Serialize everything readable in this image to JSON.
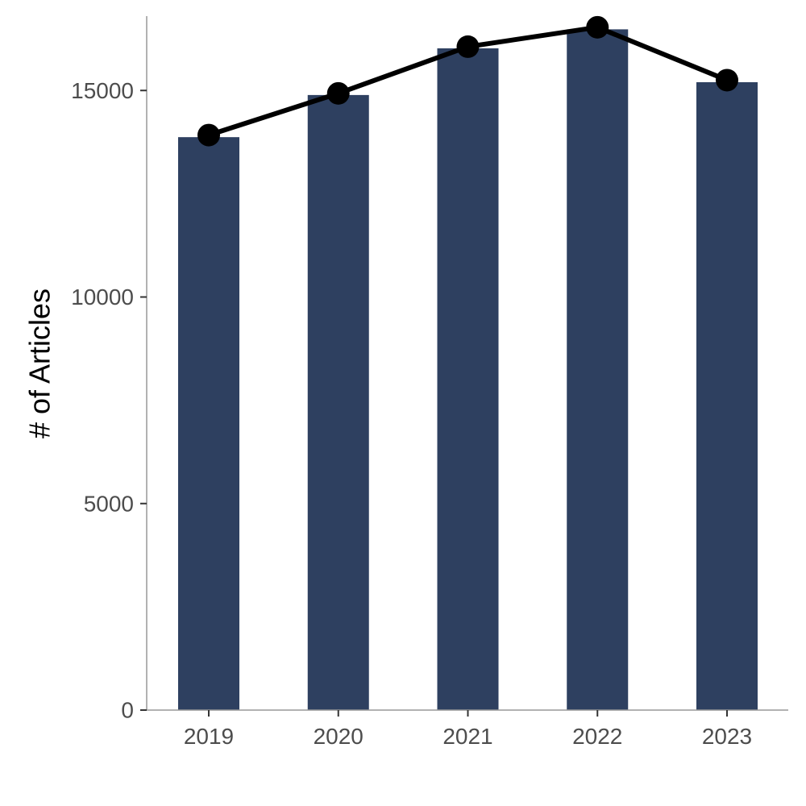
{
  "chart_data": {
    "type": "bar",
    "title": "",
    "xlabel": "",
    "ylabel": "# of Articles",
    "categories": [
      "2019",
      "2020",
      "2021",
      "2022",
      "2023"
    ],
    "series": [
      {
        "type": "bar",
        "values": [
          13870,
          14890,
          16020,
          16480,
          15200
        ],
        "color": "#2e4060"
      },
      {
        "type": "line",
        "values": [
          13920,
          14930,
          16060,
          16530,
          15250
        ],
        "color": "#000000"
      }
    ],
    "ylim": [
      0,
      16800
    ],
    "yticks": [
      0,
      5000,
      10000,
      15000
    ],
    "ytick_labels": [
      "0",
      "5000",
      "10000",
      "15000"
    ],
    "grid": false,
    "legend": "none"
  }
}
